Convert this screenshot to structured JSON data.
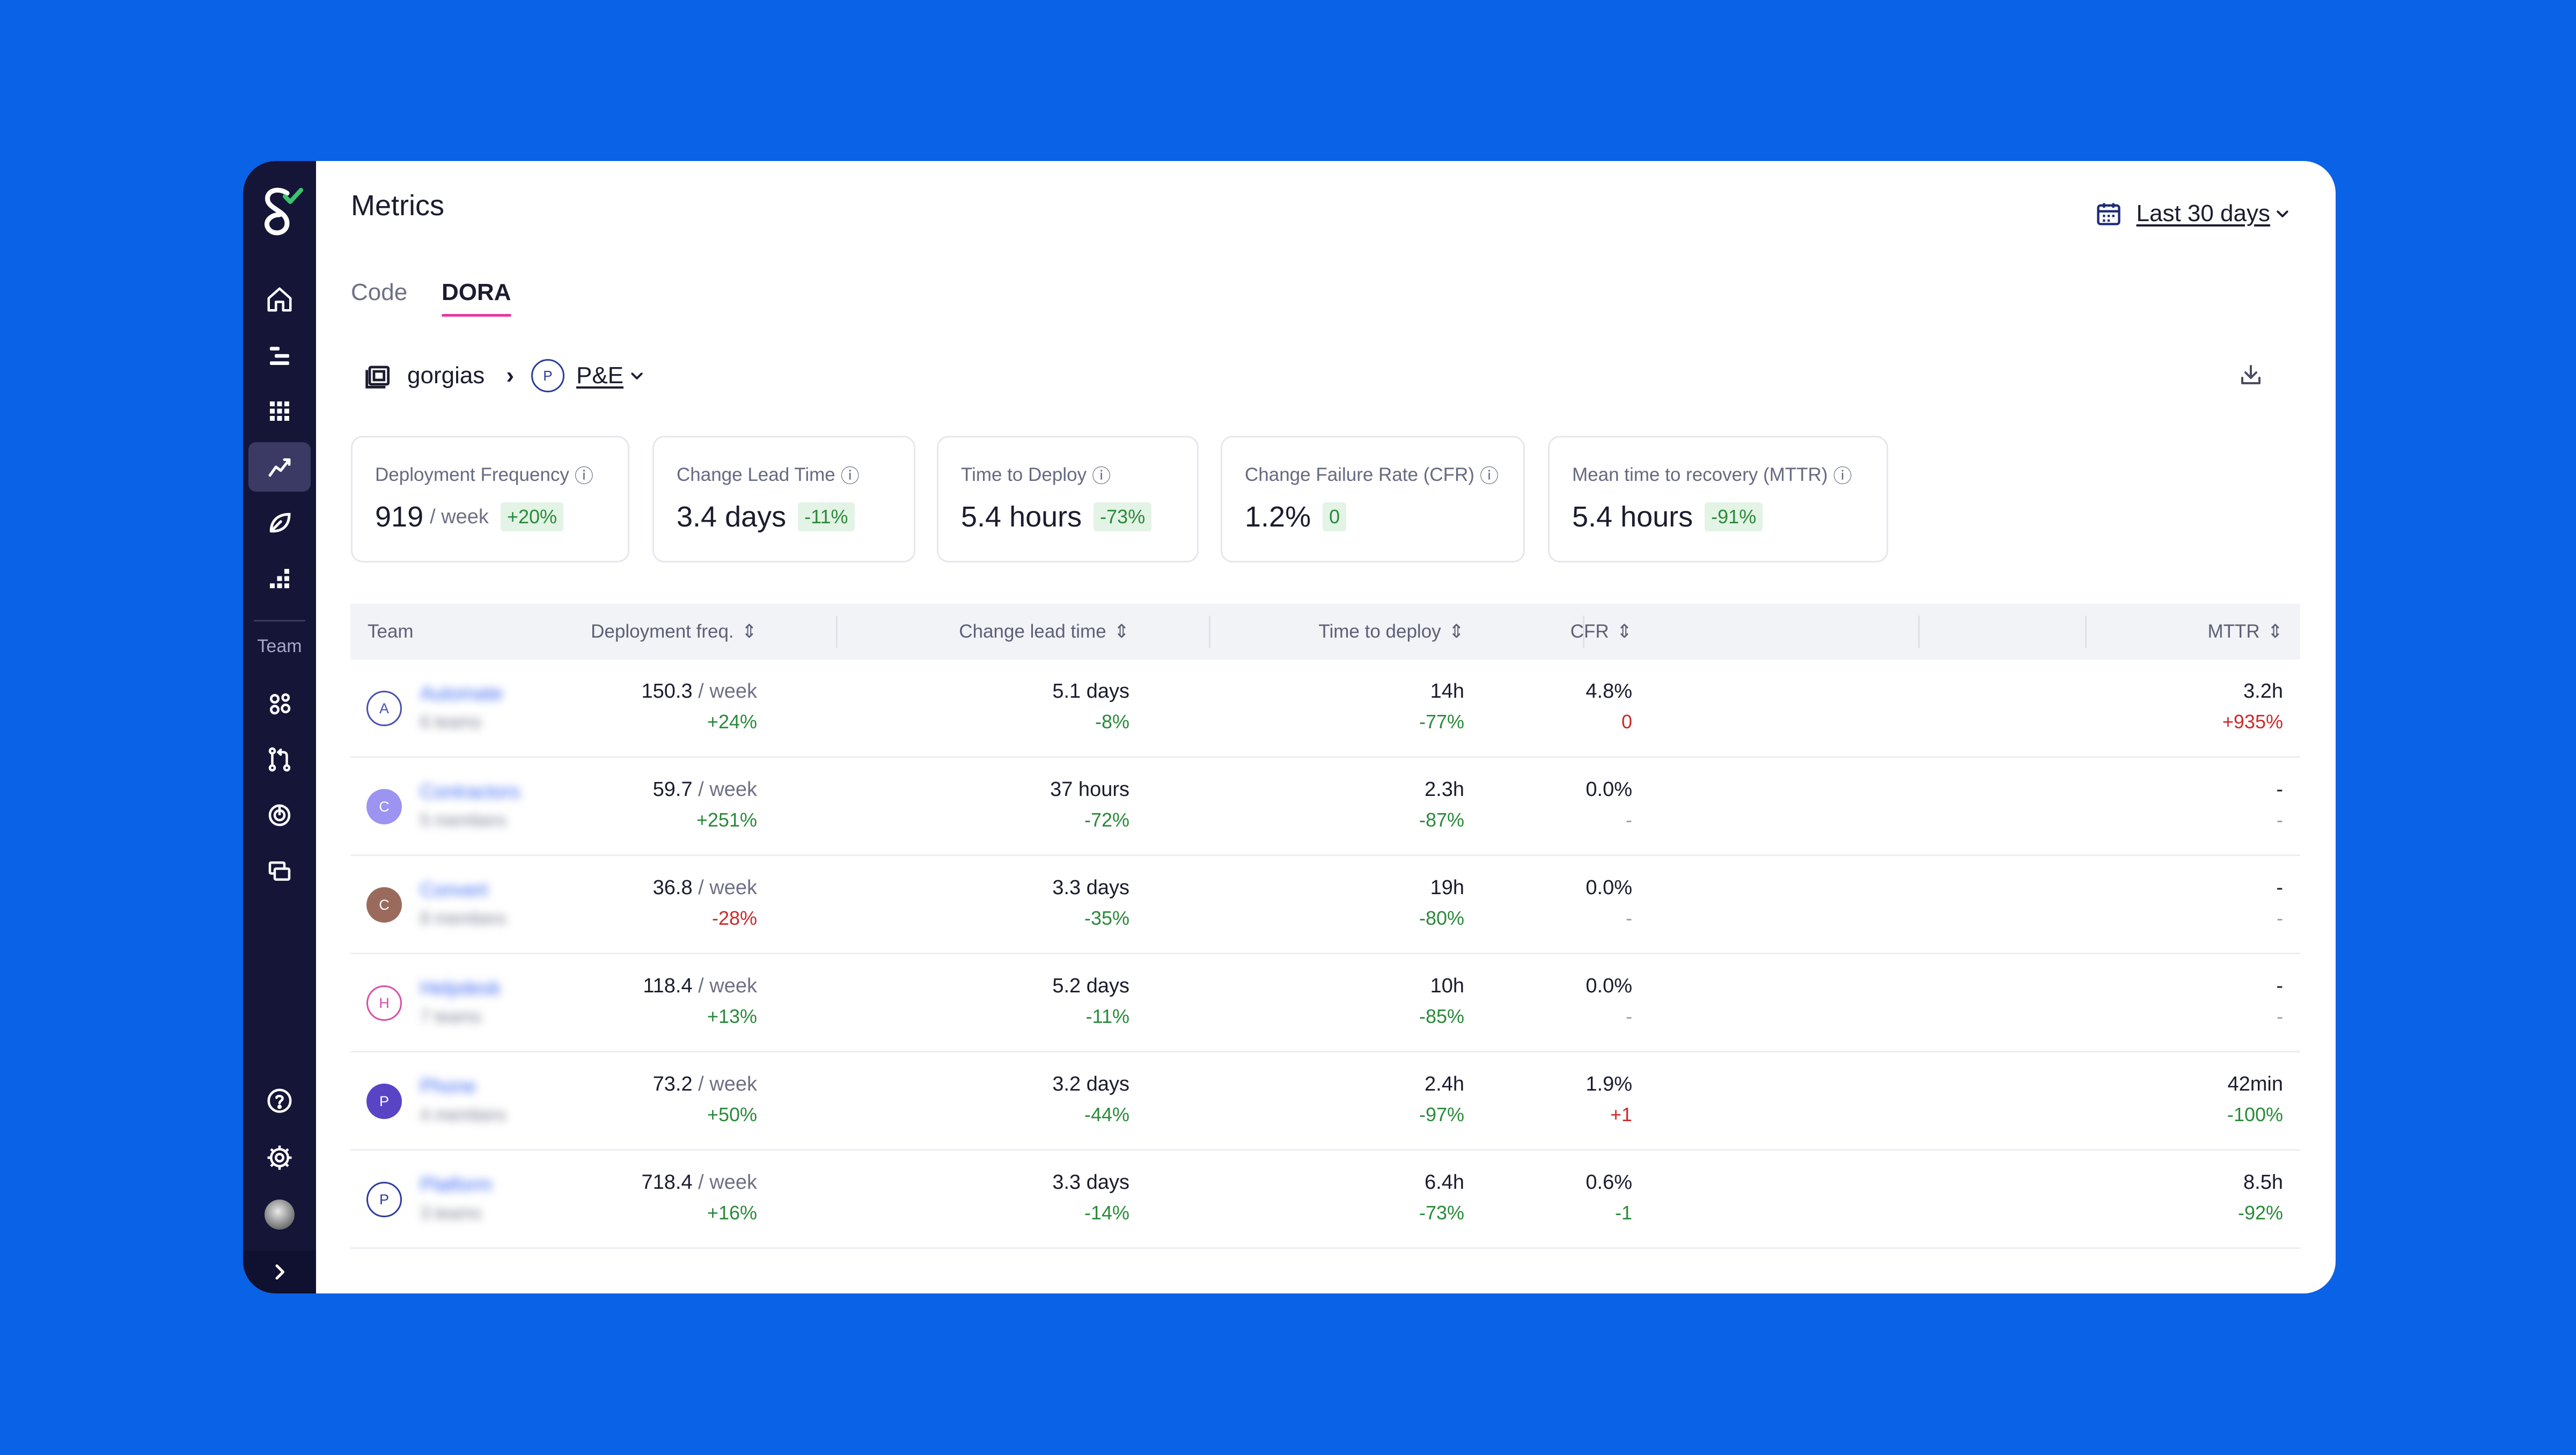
{
  "page": {
    "title": "Metrics",
    "date_range": "Last 30 days"
  },
  "tabs": [
    {
      "label": "Code",
      "active": false
    },
    {
      "label": "DORA",
      "active": true
    }
  ],
  "breadcrumb": {
    "org": "gorgias",
    "team_initial": "P",
    "team": "P&E"
  },
  "sidebar": {
    "team_label": "Team",
    "icons": [
      "home-icon",
      "timeline-icon",
      "grid-icon",
      "metrics-icon",
      "leaf-icon",
      "bars-icon",
      "team-icon",
      "pull-request-icon",
      "radar-icon",
      "cards-icon",
      "help-icon",
      "gear-icon"
    ]
  },
  "cards": [
    {
      "title": "Deployment Frequency",
      "value": "919",
      "unit": "/ week",
      "delta": "+20%"
    },
    {
      "title": "Change Lead Time",
      "value": "3.4 days",
      "unit": "",
      "delta": "-11%"
    },
    {
      "title": "Time to Deploy",
      "value": "5.4 hours",
      "unit": "",
      "delta": "-73%"
    },
    {
      "title": "Change Failure Rate (CFR)",
      "value": "1.2%",
      "unit": "",
      "delta": "0"
    },
    {
      "title": "Mean time to recovery (MTTR)",
      "value": "5.4 hours",
      "unit": "",
      "delta": "-91%"
    }
  ],
  "table": {
    "headers": [
      "Team",
      "Deployment freq.",
      "Change lead time",
      "Time to deploy",
      "CFR",
      "MTTR"
    ],
    "rows": [
      {
        "initial": "A",
        "name": "Automate",
        "sub": "6 teams",
        "dep": "150.3",
        "dep_unit": "/ week",
        "dep_d": "+24%",
        "lead": "5.1 days",
        "lead_d": "-8%",
        "ttd": "14h",
        "ttd_d": "-77%",
        "cfr": "4.8%",
        "cfr_d": "0",
        "mttr": "3.2h",
        "mttr_d": "+935%"
      },
      {
        "initial": "C",
        "name": "Contractors",
        "sub": "5 members",
        "dep": "59.7",
        "dep_unit": "/ week",
        "dep_d": "+251%",
        "lead": "37 hours",
        "lead_d": "-72%",
        "ttd": "2.3h",
        "ttd_d": "-87%",
        "cfr": "0.0%",
        "cfr_d": "-",
        "mttr": "-",
        "mttr_d": "-"
      },
      {
        "initial": "C",
        "name": "Convert",
        "sub": "8 members",
        "dep": "36.8",
        "dep_unit": "/ week",
        "dep_d": "-28%",
        "lead": "3.3 days",
        "lead_d": "-35%",
        "ttd": "19h",
        "ttd_d": "-80%",
        "cfr": "0.0%",
        "cfr_d": "-",
        "mttr": "-",
        "mttr_d": "-"
      },
      {
        "initial": "H",
        "name": "Helpdesk",
        "sub": "7 teams",
        "dep": "118.4",
        "dep_unit": "/ week",
        "dep_d": "+13%",
        "lead": "5.2 days",
        "lead_d": "-11%",
        "ttd": "10h",
        "ttd_d": "-85%",
        "cfr": "0.0%",
        "cfr_d": "-",
        "mttr": "-",
        "mttr_d": "-"
      },
      {
        "initial": "P",
        "name": "Phone",
        "sub": "4 members",
        "dep": "73.2",
        "dep_unit": "/ week",
        "dep_d": "+50%",
        "lead": "3.2 days",
        "lead_d": "-44%",
        "ttd": "2.4h",
        "ttd_d": "-97%",
        "cfr": "1.9%",
        "cfr_d": "+1",
        "mttr": "42min",
        "mttr_d": "-100%"
      },
      {
        "initial": "P",
        "name": "Platform",
        "sub": "3 teams",
        "dep": "718.4",
        "dep_unit": "/ week",
        "dep_d": "+16%",
        "lead": "3.3 days",
        "lead_d": "-14%",
        "ttd": "6.4h",
        "ttd_d": "-73%",
        "cfr": "0.6%",
        "cfr_d": "-1",
        "mttr": "8.5h",
        "mttr_d": "-92%"
      }
    ]
  },
  "colors": {
    "background": "#0a62e6",
    "sidebar": "#151538",
    "positive": "#2a8a3a",
    "negative": "#cc2a2a",
    "tab_accent": "#e43aa0"
  }
}
